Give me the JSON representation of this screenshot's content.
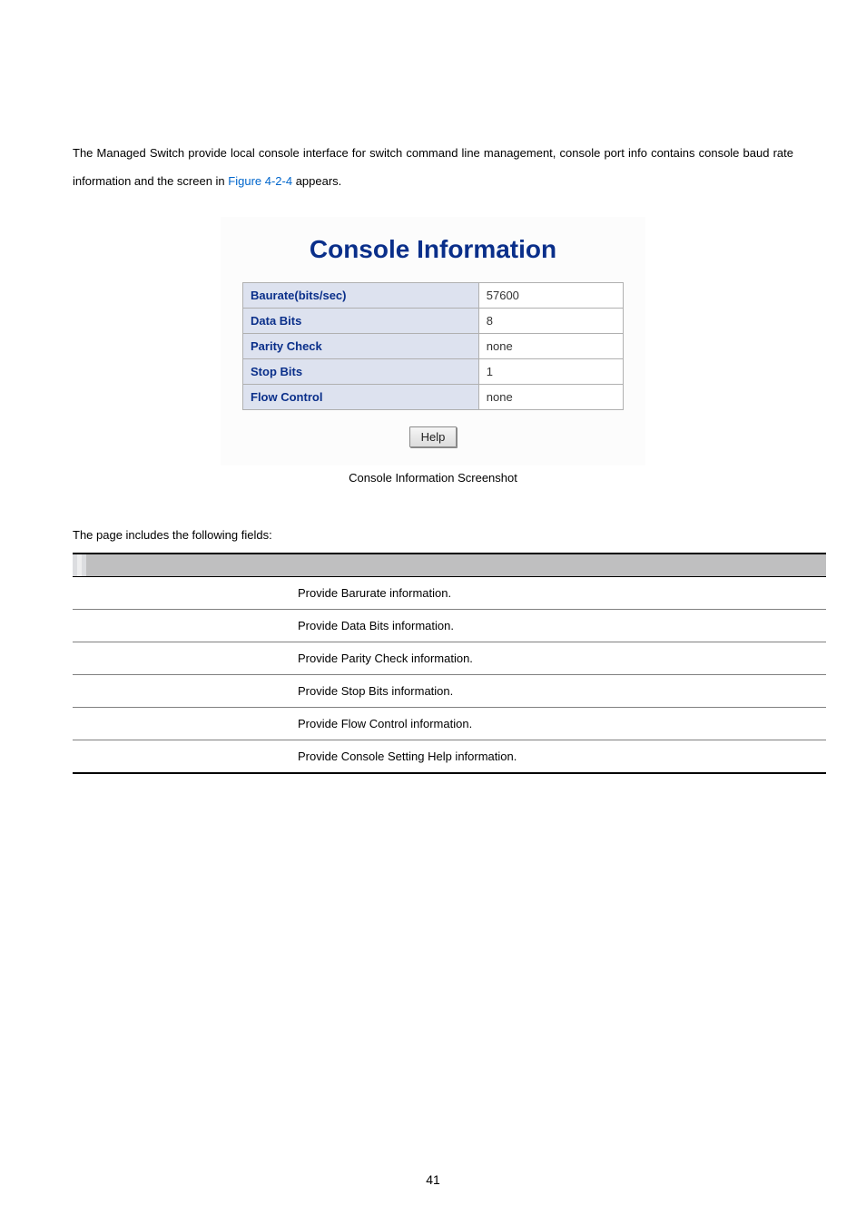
{
  "intro": {
    "text_before_ref": "The Managed Switch provide local console interface for switch command line management, console port info contains console baud rate information and the screen in ",
    "ref": "Figure 4-2-4",
    "text_after_ref": " appears."
  },
  "figure": {
    "title": "Console Information",
    "rows": [
      {
        "label": "Baurate(bits/sec)",
        "value": "57600"
      },
      {
        "label": "Data Bits",
        "value": "8"
      },
      {
        "label": "Parity Check",
        "value": "none"
      },
      {
        "label": "Stop Bits",
        "value": "1"
      },
      {
        "label": "Flow Control",
        "value": "none"
      }
    ],
    "help_label": "Help",
    "caption": "Console Information Screenshot",
    "title_color": "#0a2f8a",
    "label_bg": "#dde2ef",
    "label_color": "#0a2f8a",
    "value_bg": "#ffffff",
    "border_color": "#b0b0b0"
  },
  "fields": {
    "intro": "The page includes the following fields:",
    "header_band_colors": [
      "#dcdde0",
      "#eeeeef",
      "#dcdde0",
      "#bfbfc0"
    ],
    "rows": [
      {
        "desc": "Provide Barurate information."
      },
      {
        "desc": "Provide Data Bits information."
      },
      {
        "desc": "Provide Parity Check information."
      },
      {
        "desc": "Provide Stop Bits information."
      },
      {
        "desc": "Provide Flow Control information."
      },
      {
        "desc": "Provide Console Setting Help information."
      }
    ]
  },
  "page_number": "41"
}
